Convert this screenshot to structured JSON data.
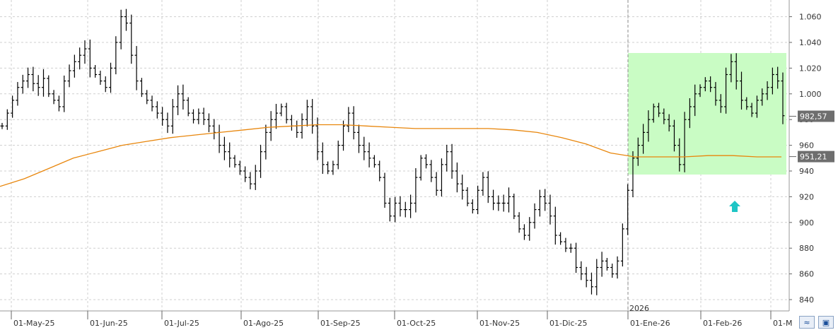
{
  "chart_data": {
    "type": "ohlc",
    "y_ticks": [
      "840",
      "860",
      "880",
      "900",
      "920",
      "940",
      "960",
      "980",
      "1.000",
      "1.020",
      "1.040",
      "1.060"
    ],
    "ylim": [
      832,
      1068
    ],
    "x_ticks": [
      "01-May-25",
      "01-Jun-25",
      "01-Jul-25",
      "01-Ago-25",
      "01-Sep-25",
      "01-Oct-25",
      "01-Nov-25",
      "01-Dic-25",
      "01-Ene-26",
      "01-Feb-26",
      "01-M"
    ],
    "year_marker": "2026",
    "grid": true,
    "last_price": "982,57",
    "ma_value": "951,21",
    "ma_color": "#e8860c",
    "bar_color": "#000000",
    "highlight_color": "#c9fcc4",
    "arrow_color": "#1fc5c5",
    "series": [
      {
        "name": "",
        "values": [
          975,
          985,
          995,
          1005,
          1010,
          1015,
          1008,
          1005,
          1012,
          1000,
          995,
          990,
          1010,
          1018,
          1025,
          1030,
          1035,
          1020,
          1015,
          1010,
          1005,
          1020,
          1040,
          1060,
          1055,
          1030,
          1010,
          1000,
          995,
          990,
          985,
          980,
          975,
          990,
          1000,
          995,
          985,
          980,
          985,
          980,
          975,
          970,
          960,
          955,
          950,
          945,
          940,
          935,
          930,
          940,
          955,
          970,
          980,
          985,
          990,
          980,
          975,
          970,
          980,
          990,
          975,
          955,
          945,
          940,
          945,
          960,
          975,
          985,
          970,
          960,
          955,
          950,
          945,
          935,
          915,
          905,
          915,
          910,
          910,
          915,
          935,
          950,
          945,
          935,
          925,
          945,
          955,
          940,
          930,
          925,
          915,
          910,
          925,
          935,
          920,
          915,
          915,
          915,
          920,
          905,
          895,
          890,
          900,
          910,
          920,
          915,
          905,
          890,
          885,
          880,
          880,
          865,
          860,
          855,
          850,
          865,
          870,
          865,
          860,
          870,
          895,
          925,
          950,
          960,
          970,
          980,
          990,
          985,
          980,
          975,
          960,
          945,
          980,
          990,
          1000,
          1005,
          1010,
          1005,
          995,
          990,
          1015,
          1025,
          1010,
          995,
          990,
          985,
          995,
          1000,
          1005,
          1015,
          1010,
          983
        ]
      }
    ],
    "ma_series": [
      928,
      934,
      942,
      950,
      955,
      960,
      963,
      966,
      968,
      970,
      972,
      974,
      975,
      976,
      976,
      975,
      974,
      973,
      973,
      973,
      973,
      972,
      970,
      966,
      961,
      954,
      951,
      951,
      951,
      952,
      952,
      951,
      951
    ]
  },
  "toolbar": {
    "zoom_icon": "fit-icon",
    "save_icon": "save-icon"
  }
}
